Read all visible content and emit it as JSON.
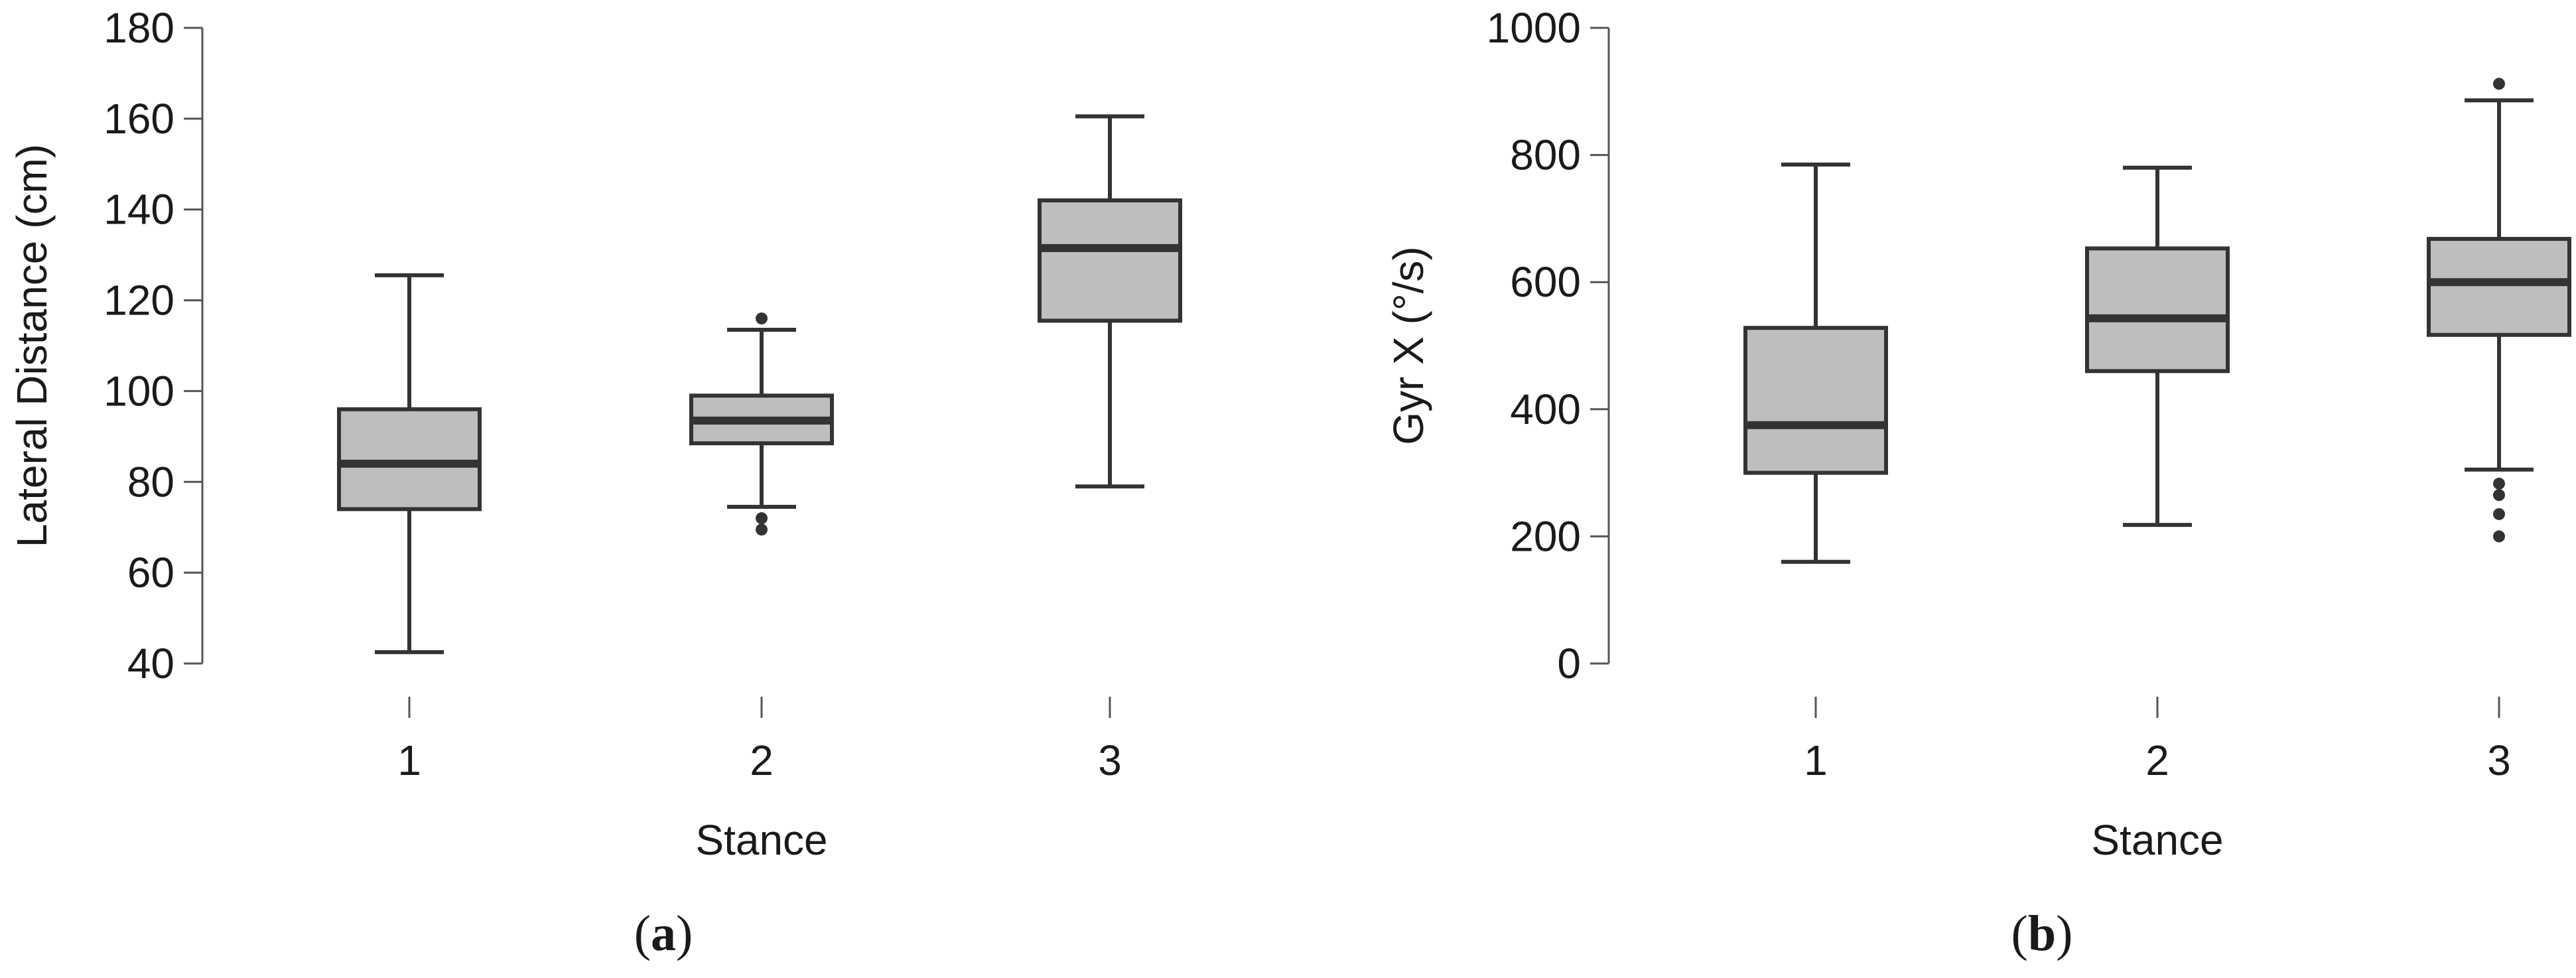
{
  "chart_data": [
    {
      "type": "boxplot",
      "panel_label": {
        "open": "(",
        "letter": "a",
        "close": ")"
      },
      "xlabel": "Stance",
      "ylabel": "Lateral Distance (cm)",
      "ylim": [
        40,
        180
      ],
      "yticks": [
        40,
        60,
        80,
        100,
        120,
        140,
        160,
        180
      ],
      "categories": [
        "1",
        "2",
        "3"
      ],
      "box_color": "#bebebe",
      "line_color": "#333333",
      "boxes": [
        {
          "category": "1",
          "whisker_low": 42.5,
          "q1": 74,
          "median": 84,
          "q3": 96,
          "whisker_high": 125.5,
          "outliers": []
        },
        {
          "category": "2",
          "whisker_low": 74.5,
          "q1": 88.5,
          "median": 93.5,
          "q3": 99,
          "whisker_high": 113.5,
          "outliers": [
            116,
            72,
            69.5
          ]
        },
        {
          "category": "3",
          "whisker_low": 79,
          "q1": 115.5,
          "median": 131.5,
          "q3": 142,
          "whisker_high": 160.5,
          "outliers": []
        }
      ]
    },
    {
      "type": "boxplot",
      "panel_label": {
        "open": "(",
        "letter": "b",
        "close": ")"
      },
      "xlabel": "Stance",
      "ylabel": "Gyr X (°/s)",
      "ylim": [
        0,
        1000
      ],
      "yticks": [
        0,
        200,
        400,
        600,
        800,
        1000
      ],
      "categories": [
        "1",
        "2",
        "3"
      ],
      "box_color": "#bebebe",
      "line_color": "#333333",
      "boxes": [
        {
          "category": "1",
          "whisker_low": 160,
          "q1": 300,
          "median": 375,
          "q3": 528,
          "whisker_high": 785,
          "outliers": []
        },
        {
          "category": "2",
          "whisker_low": 218,
          "q1": 460,
          "median": 543,
          "q3": 653,
          "whisker_high": 780,
          "outliers": []
        },
        {
          "category": "3",
          "whisker_low": 305,
          "q1": 517,
          "median": 600,
          "q3": 668,
          "whisker_high": 886,
          "outliers": [
            912,
            283,
            265,
            235,
            200
          ]
        }
      ]
    }
  ]
}
